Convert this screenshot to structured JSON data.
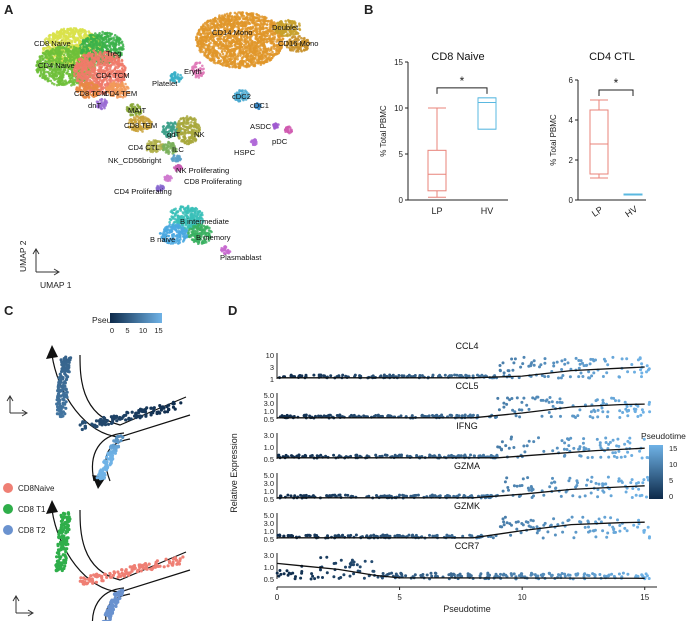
{
  "panels": {
    "a": "A",
    "b": "B",
    "c": "C",
    "d": "D"
  },
  "umap": {
    "axis_x": "UMAP 1",
    "axis_y": "UMAP 2",
    "clusters": [
      {
        "label": "CD8 Naive",
        "color": "#d9e24a"
      },
      {
        "label": "CD4 Naive",
        "color": "#6fbf3a"
      },
      {
        "label": "Treg",
        "color": "#3bb24a"
      },
      {
        "label": "CD4 TCM",
        "color": "#f07a6a"
      },
      {
        "label": "CD8 TCM",
        "color": "#e88a45"
      },
      {
        "label": "CD4 TEM",
        "color": "#f29a5a"
      },
      {
        "label": "dnT",
        "color": "#9a6bd3"
      },
      {
        "label": "MAIT",
        "color": "#8aa83a"
      },
      {
        "label": "CD8 TEM",
        "color": "#c9a23a"
      },
      {
        "label": "gdT",
        "color": "#3ca08a"
      },
      {
        "label": "CD4 CTL",
        "color": "#b0b04a"
      },
      {
        "label": "ILC",
        "color": "#7ab05a"
      },
      {
        "label": "NK",
        "color": "#a8a83c"
      },
      {
        "label": "NK_CD56bright",
        "color": "#5aa0c8"
      },
      {
        "label": "NK Proliferating",
        "color": "#c85ab0"
      },
      {
        "label": "CD8 Proliferating",
        "color": "#d07ad0"
      },
      {
        "label": "CD4 Proliferating",
        "color": "#8a6ad0"
      },
      {
        "label": "Platelet",
        "color": "#3ab0c8"
      },
      {
        "label": "Eryth",
        "color": "#e07ab8"
      },
      {
        "label": "CD14 Mono",
        "color": "#e0962a"
      },
      {
        "label": "Doublet",
        "color": "#c8a02a"
      },
      {
        "label": "CD16 Mono",
        "color": "#c8902a"
      },
      {
        "label": "cDC2",
        "color": "#48a8d0"
      },
      {
        "label": "cDC1",
        "color": "#3a8ac8"
      },
      {
        "label": "ASDC",
        "color": "#a05ad0"
      },
      {
        "label": "pDC",
        "color": "#d05ab0"
      },
      {
        "label": "HSPC",
        "color": "#b06ad8"
      },
      {
        "label": "B intermediate",
        "color": "#3ac0b8"
      },
      {
        "label": "B naive",
        "color": "#4aa8e0"
      },
      {
        "label": "B memory",
        "color": "#3ab060"
      },
      {
        "label": "Plasmablast",
        "color": "#c86ad0"
      }
    ]
  },
  "chart_data": [
    {
      "type": "box",
      "title": "CD8 Naive",
      "ylabel": "% Total PBMC",
      "categories": [
        "LP",
        "HV"
      ],
      "ylim": [
        0,
        15
      ],
      "yticks": [
        "0",
        "5",
        "10",
        "15"
      ],
      "boxes": [
        {
          "name": "LP",
          "min": 0.3,
          "q1": 1.0,
          "median": 2.8,
          "q3": 5.4,
          "max": 10.0,
          "color": "#e8837a"
        },
        {
          "name": "HV",
          "min": 7.7,
          "q1": 7.7,
          "median": 10.6,
          "q3": 11.1,
          "max": 11.1,
          "color": "#5ab8e0"
        }
      ],
      "significance": "*"
    },
    {
      "type": "box",
      "title": "CD4 CTL",
      "ylabel": "% Total PBMC",
      "categories": [
        "LP",
        "HV"
      ],
      "ylim": [
        0,
        6
      ],
      "yticks": [
        "0",
        "2",
        "4",
        "6"
      ],
      "boxes": [
        {
          "name": "LP",
          "min": 1.1,
          "q1": 1.3,
          "median": 2.8,
          "q3": 4.5,
          "max": 5.0,
          "color": "#e8837a"
        },
        {
          "name": "HV",
          "min": 0.25,
          "q1": 0.25,
          "median": 0.3,
          "q3": 0.3,
          "max": 0.3,
          "color": "#5ab8e0"
        }
      ],
      "significance": "*"
    },
    {
      "type": "scatter",
      "xlabel": "Pseudotime",
      "ylabel": "Relative Expression",
      "xlim": [
        0,
        15.5
      ],
      "xticks": [
        0,
        5,
        10,
        15
      ],
      "colorbar": {
        "title": "Pseudotime",
        "ticks": [
          "15",
          "10",
          "5",
          "0"
        ],
        "low": "#0d2a4a",
        "high": "#6fb2e6"
      },
      "genes": [
        {
          "name": "CCL4",
          "yticks": [
            "10",
            "3",
            "1"
          ],
          "trend": [
            [
              0,
              0.05
            ],
            [
              8,
              0.05
            ],
            [
              10,
              0.12
            ],
            [
              12,
              0.35
            ],
            [
              14,
              0.45
            ],
            [
              15,
              0.5
            ]
          ]
        },
        {
          "name": "CCL5",
          "yticks": [
            "5.0",
            "3.0",
            "1.0",
            "0.5"
          ],
          "trend": [
            [
              0,
              0.05
            ],
            [
              8,
              0.05
            ],
            [
              10,
              0.25
            ],
            [
              12,
              0.5
            ],
            [
              14,
              0.6
            ],
            [
              15,
              0.62
            ]
          ]
        },
        {
          "name": "IFNG",
          "yticks": [
            "3.0",
            "1.0",
            "0.5"
          ],
          "trend": [
            [
              0,
              0.05
            ],
            [
              9,
              0.05
            ],
            [
              11,
              0.2
            ],
            [
              13,
              0.35
            ],
            [
              15,
              0.45
            ]
          ]
        },
        {
          "name": "GZMA",
          "yticks": [
            "5.0",
            "3.0",
            "1.0",
            "0.5"
          ],
          "trend": [
            [
              0,
              0.05
            ],
            [
              8,
              0.05
            ],
            [
              10,
              0.2
            ],
            [
              12,
              0.4
            ],
            [
              14,
              0.5
            ],
            [
              15,
              0.55
            ]
          ]
        },
        {
          "name": "GZMK",
          "yticks": [
            "5.0",
            "3.0",
            "1.0",
            "0.5"
          ],
          "trend": [
            [
              0,
              0.05
            ],
            [
              8,
              0.05
            ],
            [
              10,
              0.35
            ],
            [
              12,
              0.6
            ],
            [
              14,
              0.68
            ],
            [
              15,
              0.7
            ]
          ]
        },
        {
          "name": "CCR7",
          "yticks": [
            "3.0",
            "1.0",
            "0.5"
          ],
          "trend": [
            [
              0,
              0.65
            ],
            [
              1,
              0.55
            ],
            [
              2.5,
              0.4
            ],
            [
              4,
              0.15
            ],
            [
              5,
              0.05
            ],
            [
              15,
              0.03
            ]
          ]
        }
      ]
    }
  ],
  "trajectory": {
    "colorbar_title": "Pseudotime",
    "colorbar_ticks": [
      "0",
      "5",
      "10",
      "15"
    ],
    "legend": [
      {
        "label": "CD8Naive",
        "color": "#ef7f74"
      },
      {
        "label": "CD8 T1",
        "color": "#2fae4a"
      },
      {
        "label": "CD8 T2",
        "color": "#6a92cf"
      }
    ]
  }
}
